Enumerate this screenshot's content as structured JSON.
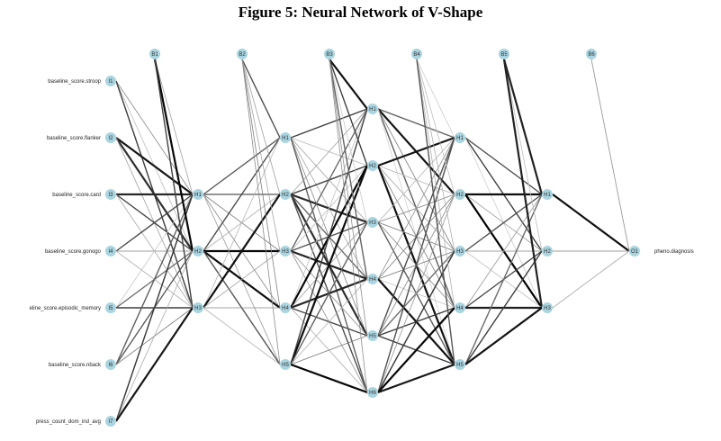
{
  "title": "Figure 5: Neural Network of V-Shape",
  "colors": {
    "node": "#a9d4e0",
    "edge_dark": "#111111",
    "edge_light": "#c8c8c8"
  },
  "input_labels": [
    "baseline_score.stroop",
    "baseline_score.flanker",
    "baseline_score.card",
    "baseline_score.gonogo",
    "eline_score.episodic_memory",
    "baseline_score.nback",
    "press_count_dom_ind_avg"
  ],
  "output_label": "pheno.diagnosis",
  "layers": [
    {
      "bias": "B1",
      "nodes": [
        "I1",
        "I2",
        "I3",
        "I4",
        "I5",
        "I6",
        "I7"
      ]
    },
    {
      "bias": "B2",
      "nodes": [
        "H1",
        "H2",
        "H3"
      ]
    },
    {
      "bias": "B3",
      "nodes": [
        "H1",
        "H2",
        "H3",
        "H4",
        "H5"
      ]
    },
    {
      "bias": "B4",
      "nodes": [
        "H1",
        "H2",
        "H3",
        "H4",
        "H5",
        "H6"
      ]
    },
    {
      "bias": "B5",
      "nodes": [
        "H1",
        "H2",
        "H3",
        "H4",
        "H5"
      ]
    },
    {
      "bias": "B6",
      "nodes": [
        "H1",
        "H2",
        "H3"
      ]
    },
    {
      "bias": null,
      "nodes": [
        "O1"
      ]
    }
  ]
}
